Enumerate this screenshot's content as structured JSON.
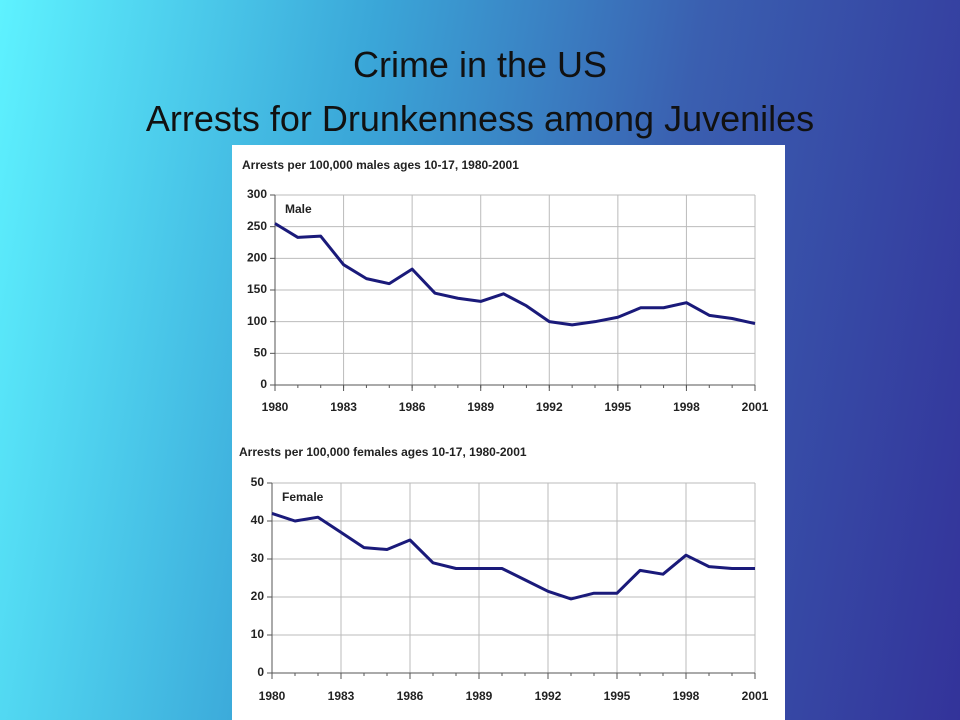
{
  "slide": {
    "title": "Crime in the US",
    "subtitle": "Arrests for Drunkenness among Juveniles"
  },
  "chart_data": [
    {
      "type": "line",
      "title": "Arrests per 100,000 males ages 10-17, 1980-2001",
      "x": [
        1980,
        1981,
        1982,
        1983,
        1984,
        1985,
        1986,
        1987,
        1988,
        1989,
        1990,
        1991,
        1992,
        1993,
        1994,
        1995,
        1996,
        1997,
        1998,
        1999,
        2000,
        2001
      ],
      "series": [
        {
          "name": "Male",
          "color": "#1a1a7a",
          "values": [
            255,
            233,
            235,
            190,
            168,
            160,
            183,
            145,
            137,
            132,
            144,
            125,
            100,
            95,
            100,
            107,
            122,
            122,
            130,
            110,
            105,
            97
          ]
        }
      ],
      "xlim": [
        1980,
        2001
      ],
      "xticks": [
        1980,
        1983,
        1986,
        1989,
        1992,
        1995,
        1998,
        2001
      ],
      "ylim": [
        0,
        300
      ],
      "yticks": [
        0,
        50,
        100,
        150,
        200,
        250,
        300
      ],
      "grid": true
    },
    {
      "type": "line",
      "title": "Arrests per 100,000 females ages 10-17, 1980-2001",
      "x": [
        1980,
        1981,
        1982,
        1983,
        1984,
        1985,
        1986,
        1987,
        1988,
        1989,
        1990,
        1991,
        1992,
        1993,
        1994,
        1995,
        1996,
        1997,
        1998,
        1999,
        2000,
        2001
      ],
      "series": [
        {
          "name": "Female",
          "color": "#1a1a7a",
          "values": [
            42,
            40,
            41,
            37,
            33,
            32.5,
            35,
            29,
            27.5,
            27.5,
            27.5,
            24.5,
            21.5,
            19.5,
            21,
            21,
            27,
            26,
            31,
            28,
            27.5,
            27.5
          ]
        }
      ],
      "xlim": [
        1980,
        2001
      ],
      "xticks": [
        1980,
        1983,
        1986,
        1989,
        1992,
        1995,
        1998,
        2001
      ],
      "ylim": [
        0,
        50
      ],
      "yticks": [
        0,
        10,
        20,
        30,
        40,
        50
      ],
      "grid": true
    }
  ]
}
